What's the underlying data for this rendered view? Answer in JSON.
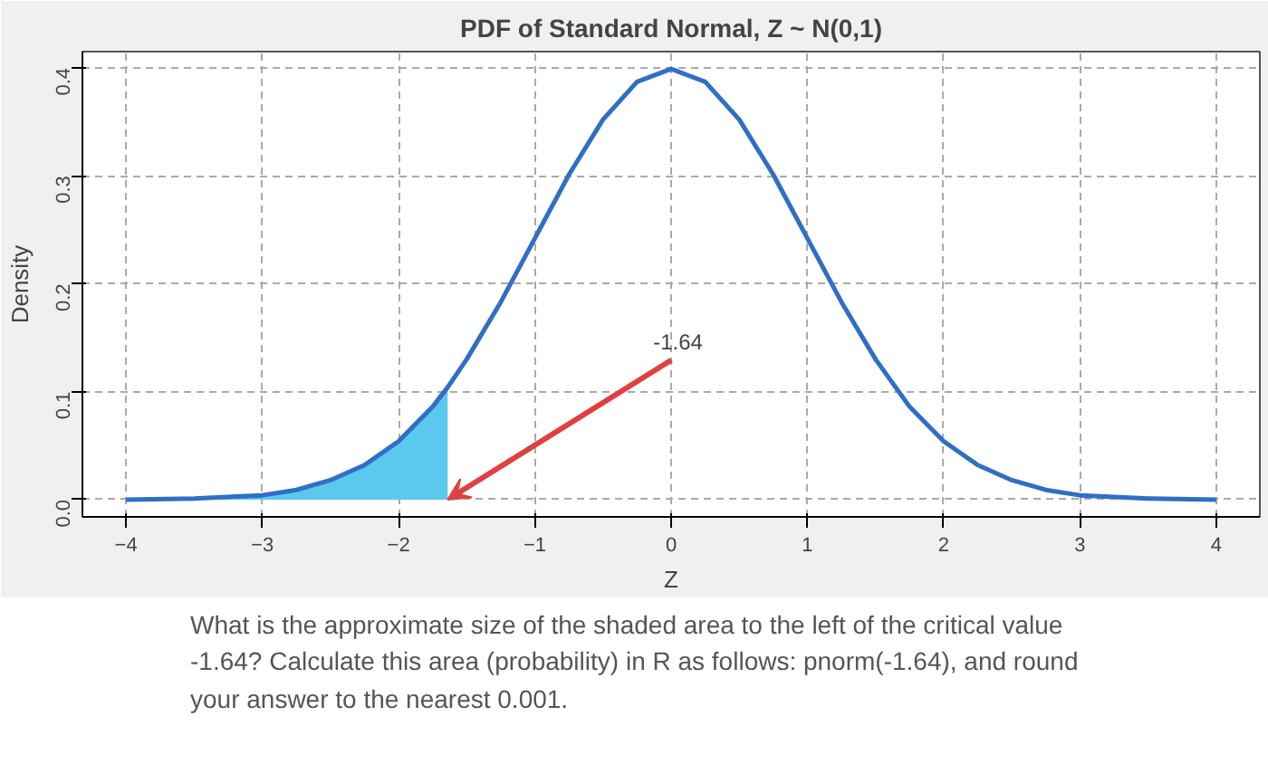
{
  "chart_data": {
    "type": "line",
    "title": "PDF of Standard Normal, Z ~ N(0,1)",
    "xlabel": "Z",
    "ylabel": "Density",
    "series": [
      {
        "color": "#2f6fc4",
        "x": [
          -4,
          -3.5,
          -3,
          -2.75,
          -2.5,
          -2.25,
          -2,
          -1.75,
          -1.64,
          -1.5,
          -1.25,
          -1,
          -0.75,
          -0.5,
          -0.25,
          0,
          0.25,
          0.5,
          0.75,
          1,
          1.25,
          1.5,
          1.75,
          2,
          2.25,
          2.5,
          2.75,
          3,
          3.5,
          4
        ],
        "values": [
          0,
          0.001,
          0.004,
          0.009,
          0.018,
          0.032,
          0.054,
          0.086,
          0.104,
          0.13,
          0.183,
          0.242,
          0.301,
          0.352,
          0.387,
          0.399,
          0.387,
          0.352,
          0.301,
          0.242,
          0.183,
          0.13,
          0.086,
          0.054,
          0.032,
          0.018,
          0.009,
          0.004,
          0.001,
          0
        ]
      },
      {
        "type": "area",
        "color": "#5bc8ee",
        "x": [
          -4,
          -3.5,
          -3,
          -2.75,
          -2.5,
          -2.25,
          -2,
          -1.75,
          -1.64
        ],
        "values": [
          0,
          0.001,
          0.004,
          0.009,
          0.018,
          0.032,
          0.054,
          0.086,
          0.104
        ]
      }
    ],
    "xlim": [
      -4.32,
      4.32
    ],
    "ylim": [
      -0.016,
      0.415
    ],
    "xticks": [
      -4,
      -3,
      -2,
      -1,
      0,
      1,
      2,
      3,
      4
    ],
    "yticks": [
      {
        "value": 0,
        "label": "0.0"
      },
      0.1,
      0.2,
      0.3,
      0.4
    ],
    "grid": true,
    "line_style": "solid",
    "annotations": [
      {
        "text": "-1.64",
        "x": -1.64,
        "y": 0
      },
      "What is the approximate size of the shaded area to the left of the critical value",
      "-1.64? Calculate this area (probability) in R as follows: pnorm(-1.64), and round",
      "your answer to the nearest 0.001."
    ]
  }
}
